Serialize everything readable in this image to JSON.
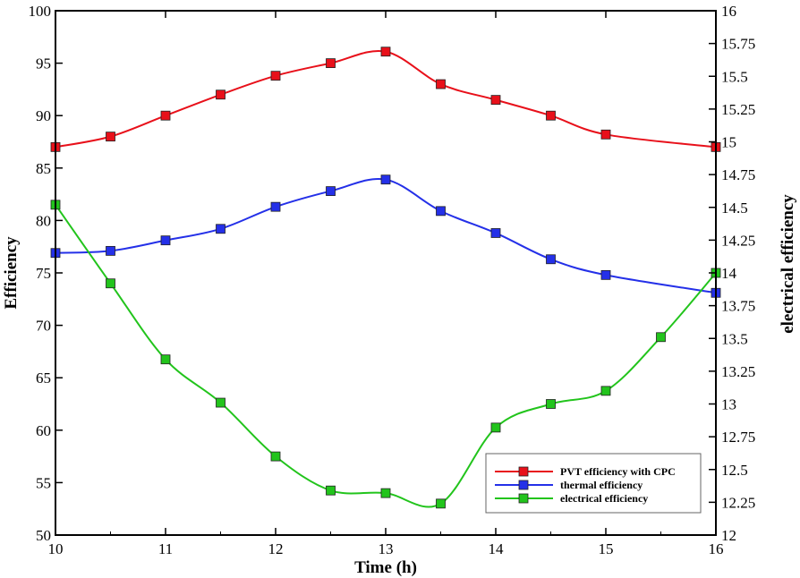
{
  "chart_data": {
    "type": "line",
    "xlabel": "Time (h)",
    "ylabel": "Efficiency",
    "y2label": "electrical efficiency",
    "xlim": [
      10,
      16
    ],
    "ylim": [
      50,
      100
    ],
    "y2lim": [
      12,
      16
    ],
    "xticks": [
      "10",
      "11",
      "12",
      "13",
      "14",
      "15",
      "16"
    ],
    "yticks": [
      "50",
      "55",
      "60",
      "65",
      "70",
      "75",
      "80",
      "85",
      "90",
      "95",
      "100"
    ],
    "y2ticks": [
      "12",
      "12.25",
      "12.5",
      "12.75",
      "13",
      "13.25",
      "13.5",
      "13.75",
      "14",
      "14.25",
      "14.5",
      "14.75",
      "15",
      "15.25",
      "15.5",
      "15.75",
      "16"
    ],
    "grid": false,
    "legend_position": "bottom-right",
    "series": [
      {
        "name": "PVT efficiency with CPC",
        "axis": "left",
        "color": "#e8101a",
        "x": [
          10,
          10.5,
          11,
          11.5,
          12,
          12.5,
          13,
          13.5,
          14,
          14.5,
          15,
          16
        ],
        "y": [
          87,
          88,
          90,
          92,
          93.8,
          95,
          96.1,
          93,
          91.5,
          90,
          88.2,
          87
        ]
      },
      {
        "name": "thermal efficiency",
        "axis": "left",
        "color": "#2430e8",
        "x": [
          10,
          10.5,
          11,
          11.5,
          12,
          12.5,
          13,
          13.5,
          14,
          14.5,
          15,
          16
        ],
        "y": [
          76.9,
          77.1,
          78.1,
          79.2,
          81.3,
          82.8,
          83.9,
          80.9,
          78.8,
          76.3,
          74.8,
          73.1
        ]
      },
      {
        "name": "electrical efficiency",
        "axis": "right",
        "color": "#22c41c",
        "x": [
          10,
          10.5,
          11,
          11.5,
          12,
          12.5,
          13,
          13.5,
          14,
          14.5,
          15,
          15.5,
          16
        ],
        "y": [
          14.52,
          13.92,
          13.34,
          13.01,
          12.6,
          12.34,
          12.32,
          12.24,
          12.82,
          13.0,
          13.1,
          13.51,
          14.0
        ]
      }
    ]
  }
}
